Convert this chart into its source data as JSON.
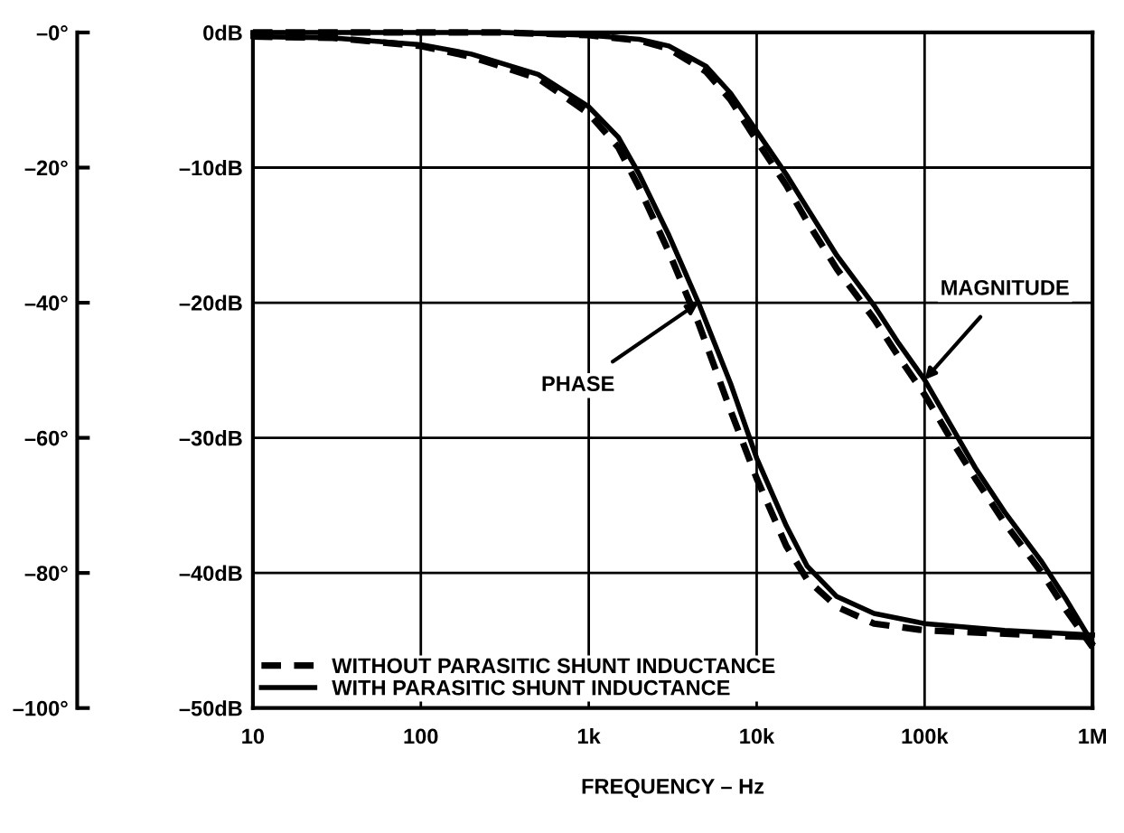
{
  "chart_data": {
    "type": "line",
    "xlabel": "FREQUENCY – Hz",
    "log": "x",
    "grid": true,
    "legend": "bottom left",
    "marker": "none",
    "xlim": [
      10,
      1000000
    ],
    "xticks": [
      {
        "value": 10,
        "label": "10"
      },
      {
        "value": 100,
        "label": "100"
      },
      {
        "value": 1000,
        "label": "1k"
      },
      {
        "value": 10000,
        "label": "10k"
      },
      {
        "value": 100000,
        "label": "100k"
      },
      {
        "value": 1000000,
        "label": "1M"
      }
    ],
    "ylim": [
      -50,
      0
    ],
    "yticks": [
      {
        "value": 0,
        "label": "0dB"
      },
      {
        "value": -10,
        "label": "–10dB"
      },
      {
        "value": -20,
        "label": "–20dB"
      },
      {
        "value": -30,
        "label": "–30dB"
      },
      {
        "value": -40,
        "label": "–40dB"
      },
      {
        "value": -50,
        "label": "–50dB"
      }
    ],
    "y2lim": [
      -100,
      0
    ],
    "y2ticks": [
      {
        "value": 0,
        "label": "–0°"
      },
      {
        "value": -20,
        "label": "–20°"
      },
      {
        "value": -40,
        "label": "–40°"
      },
      {
        "value": -60,
        "label": "–60°"
      },
      {
        "value": -80,
        "label": "–80°"
      },
      {
        "value": -100,
        "label": "–100°"
      }
    ],
    "series": [
      {
        "name": "WITHOUT PARASITIC SHUNT INDUCTANCE",
        "color": "#000000",
        "line_style": "dashed",
        "x": [
          10,
          100,
          300,
          1000,
          2000,
          3000,
          5000,
          7000,
          10000,
          15000,
          20000,
          30000,
          50000,
          70000,
          100000,
          150000,
          200000,
          300000,
          500000,
          700000,
          1000000
        ],
        "values": [
          0,
          0,
          0,
          -0.2,
          -0.6,
          -1.2,
          -2.9,
          -5,
          -8,
          -11.3,
          -14,
          -17.5,
          -21.2,
          -24,
          -26.8,
          -30.5,
          -33,
          -36.3,
          -40,
          -42.8,
          -45.5
        ]
      },
      {
        "name": "WITH PARASITIC SHUNT INDUCTANCE",
        "color": "#000000",
        "line_style": "solid",
        "x": [
          10,
          100,
          300,
          1000,
          2000,
          3000,
          5000,
          7000,
          10000,
          15000,
          20000,
          30000,
          50000,
          70000,
          100000,
          150000,
          200000,
          300000,
          500000,
          700000,
          1000000
        ],
        "values": [
          0,
          0,
          0,
          -0.2,
          -0.5,
          -1,
          -2.5,
          -4.5,
          -7.3,
          -10.5,
          -13,
          -16.5,
          -20.2,
          -23,
          -25.7,
          -29.5,
          -32.2,
          -35.5,
          -39.2,
          -42,
          -45.2
        ]
      },
      {
        "color": "#000000",
        "line_style": "dashed",
        "axis": "y2",
        "x": [
          10,
          30,
          100,
          200,
          500,
          1000,
          1500,
          2000,
          3000,
          4500,
          7000,
          10000,
          15000,
          20000,
          30000,
          50000,
          100000,
          300000,
          1000000
        ],
        "values": [
          -0.6,
          -0.8,
          -2,
          -3.6,
          -6.8,
          -12,
          -17,
          -23,
          -32.5,
          -43,
          -56,
          -66,
          -76,
          -81,
          -85,
          -87.5,
          -88.5,
          -89,
          -89.5
        ]
      },
      {
        "color": "#000000",
        "line_style": "solid",
        "axis": "y2",
        "x": [
          10,
          30,
          100,
          200,
          500,
          1000,
          1500,
          2000,
          3000,
          4500,
          7000,
          10000,
          15000,
          20000,
          30000,
          50000,
          100000,
          300000,
          1000000
        ],
        "values": [
          -0.6,
          -0.8,
          -1.8,
          -3.2,
          -6.2,
          -11,
          -15.5,
          -21,
          -30,
          -40,
          -52,
          -63,
          -73,
          -79,
          -83.5,
          -86,
          -87.5,
          -88.5,
          -89.2
        ]
      }
    ],
    "annotations": [
      {
        "text": "MAGNITUDE",
        "x": 100000,
        "y": -25.7
      },
      {
        "text": "PHASE",
        "x": 4500,
        "y": -20
      }
    ]
  }
}
